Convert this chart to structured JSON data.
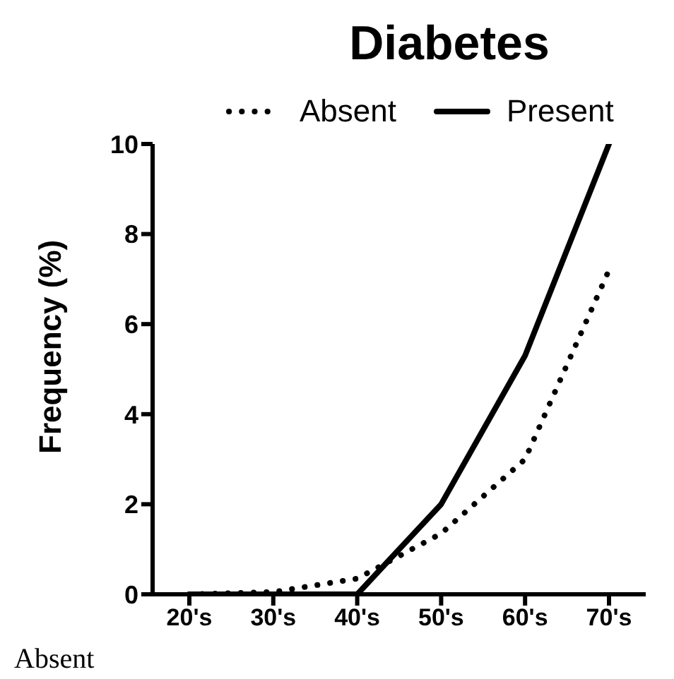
{
  "chart_data": {
    "type": "line",
    "title": "Diabetes",
    "ylabel": "Frequency (%)",
    "categories": [
      "20's",
      "30's",
      "40's",
      "50's",
      "60's",
      "70's"
    ],
    "series": [
      {
        "name": "Absent",
        "color": "#000000",
        "line_style": "dotted",
        "values": [
          0,
          0.05,
          0.35,
          1.35,
          3.0,
          7.2
        ]
      },
      {
        "name": "Present",
        "color": "#000000",
        "line_style": "solid",
        "values": [
          0,
          0,
          0,
          2.0,
          5.3,
          10
        ]
      }
    ],
    "ylim": [
      0,
      10
    ],
    "yticks": [
      0,
      2,
      4,
      6,
      8,
      10
    ],
    "grid": false,
    "legend": "top",
    "marker": "none",
    "annotations": [
      "Absent"
    ]
  }
}
